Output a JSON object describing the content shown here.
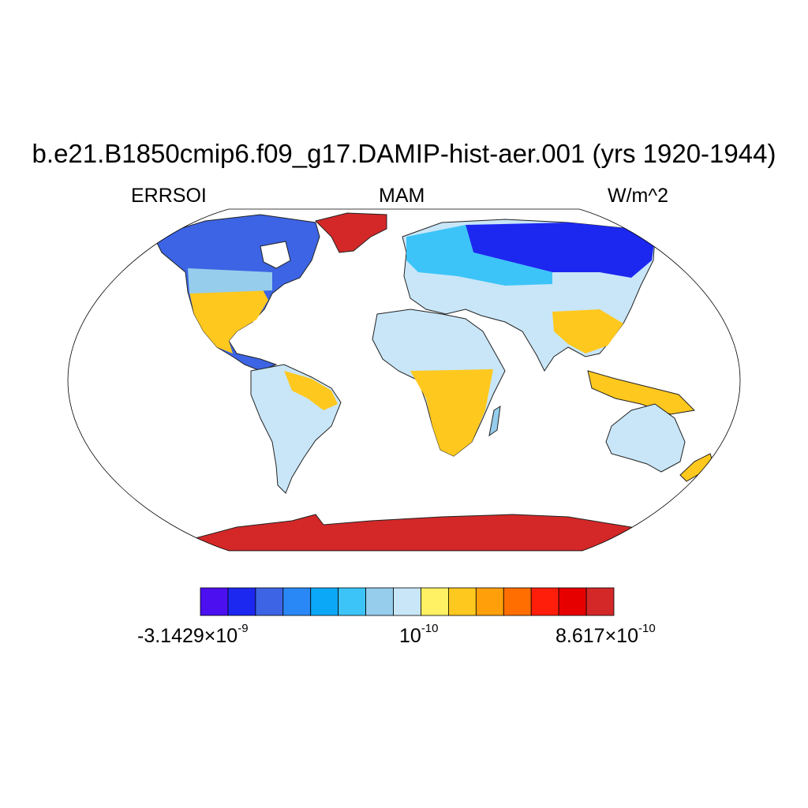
{
  "title": "b.e21.B1850cmip6.f09_g17.DAMIP-hist-aer.001 (yrs 1920-1944)",
  "subtitle_left": "ERRSOI",
  "subtitle_center": "MAM",
  "subtitle_right": "W/m^2",
  "projection": "Robinson",
  "ocean_color": "#ffffff",
  "colorbar": {
    "colors": [
      "#4b0ff0",
      "#1c28f0",
      "#3c64e4",
      "#2a88f6",
      "#0ca8f8",
      "#3cc4f8",
      "#96cdec",
      "#c8e6f8",
      "#fff064",
      "#ffc81e",
      "#ffa00a",
      "#ff6e00",
      "#ff1e0a",
      "#e60000",
      "#d42828"
    ],
    "label_min": {
      "mantissa": "-3.1429",
      "times": "×",
      "base": "10",
      "exp": "-9"
    },
    "label_mid": {
      "base": "10",
      "exp": "-10"
    },
    "label_max": {
      "mantissa": "8.617",
      "times": "×",
      "base": "10",
      "exp": "-10"
    }
  }
}
